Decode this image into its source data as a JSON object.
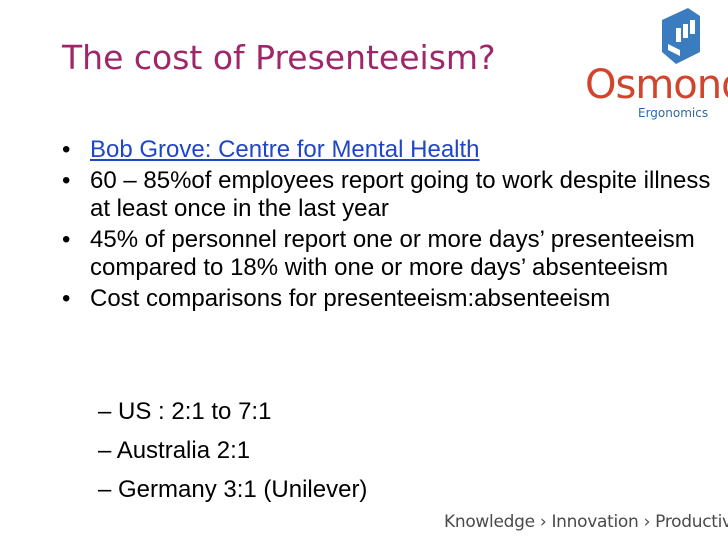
{
  "slide": {
    "title": "The cost of Presenteeism?",
    "bullets": [
      {
        "text": "Bob Grove: Centre for Mental Health",
        "link": true
      },
      {
        "text": "60 – 85%of employees report going to work despite illness at least once in the last year"
      },
      {
        "text": "45% of personnel report one or more days’ presenteeism compared to 18% with one or more days’ absenteeism"
      },
      {
        "text": "Cost comparisons for  presenteeism:absenteeism"
      }
    ],
    "sub_bullets": [
      "– US : 2:1 to 7:1",
      "– Australia 2:1",
      "– Germany 3:1 (Unilever)"
    ],
    "bullet_symbol": "•"
  },
  "logo": {
    "name": "Osmond",
    "subtitle": "Ergonomics",
    "colors": {
      "name": "#d2452d",
      "subtitle": "#2c6aa8",
      "mark": "#3a7cbf"
    }
  },
  "footer": {
    "tagline": "Knowledge › Innovation › Productivity"
  },
  "colors": {
    "title": "#a0266a",
    "link": "#1f46c8"
  }
}
